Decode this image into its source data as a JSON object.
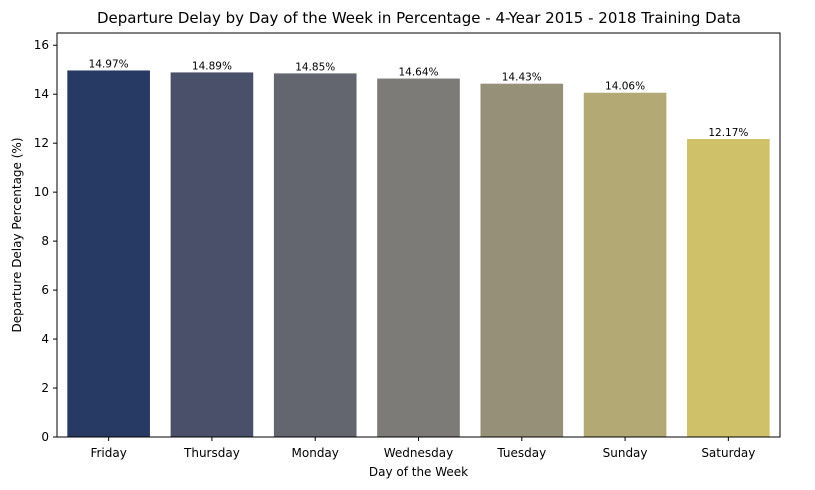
{
  "chart_data": {
    "type": "bar",
    "title": "Departure Delay by Day of the Week in Percentage - 4-Year 2015 - 2018 Training Data",
    "xlabel": "Day of the Week",
    "ylabel": "Departure Delay Percentage (%)",
    "categories": [
      "Friday",
      "Thursday",
      "Monday",
      "Wednesday",
      "Tuesday",
      "Sunday",
      "Saturday"
    ],
    "values": [
      14.97,
      14.89,
      14.85,
      14.64,
      14.43,
      14.06,
      12.17
    ],
    "data_labels": [
      "14.97%",
      "14.89%",
      "14.85%",
      "14.64%",
      "14.43%",
      "14.06%",
      "12.17%"
    ],
    "colors": [
      "#273a64",
      "#4a5069",
      "#63666e",
      "#7c7b78",
      "#979079",
      "#b3a975",
      "#cfc169"
    ],
    "ylim": [
      0,
      16.5
    ],
    "yticks": [
      0,
      2,
      4,
      6,
      8,
      10,
      12,
      14,
      16
    ],
    "grid": false,
    "legend": "none"
  }
}
